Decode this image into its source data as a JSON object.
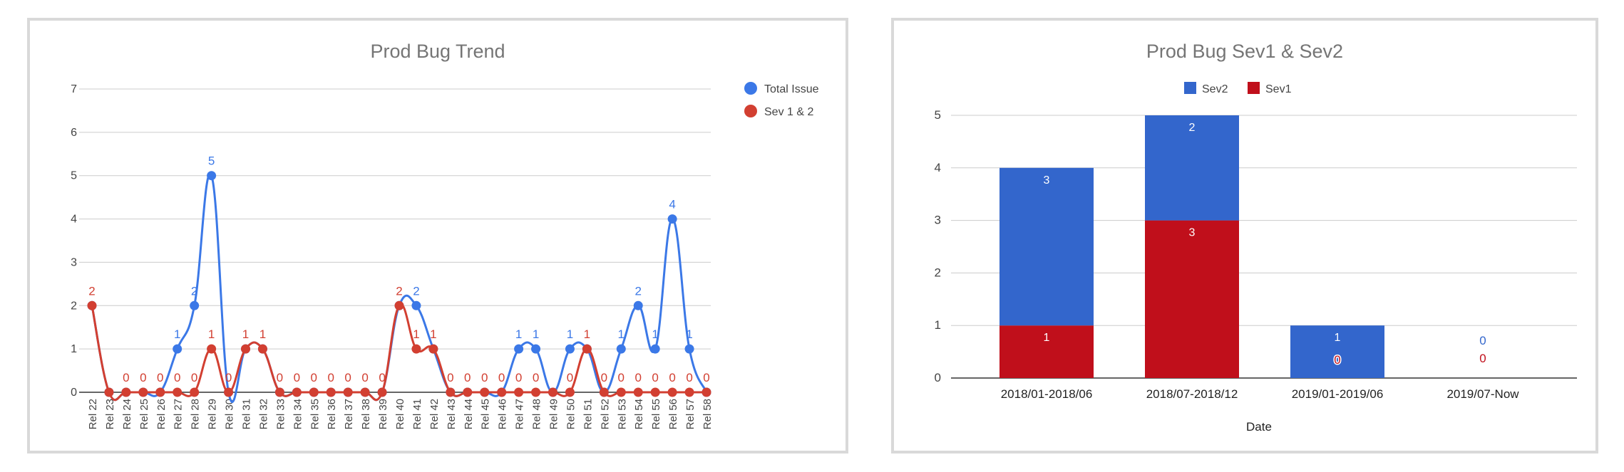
{
  "chart_data": [
    {
      "type": "line",
      "title": "Prod Bug Trend",
      "xlabel": "",
      "ylabel": "",
      "ylim": [
        0,
        7
      ],
      "yticks": [
        0,
        1,
        2,
        3,
        4,
        5,
        6,
        7
      ],
      "grid": true,
      "legend_position": "right",
      "categories": [
        "Rel 22",
        "Rel 23",
        "Rel 24",
        "Rel 25",
        "Rel 26",
        "Rel 27",
        "Rel 28",
        "Rel 29",
        "Rel 30",
        "Rel 31",
        "Rel 32",
        "Rel 33",
        "Rel 34",
        "Rel 35",
        "Rel 36",
        "Rel 37",
        "Rel 38",
        "Rel 39",
        "Rel 40",
        "Rel 41",
        "Rel 42",
        "Rel 43",
        "Rel 44",
        "Rel 45",
        "Rel 46",
        "Rel 47",
        "Rel 48",
        "Rel 49",
        "Rel 50",
        "Rel 51",
        "Rel 52",
        "Rel 53",
        "Rel 54",
        "Rel 55",
        "Rel 56",
        "Rel 57",
        "Rel 58"
      ],
      "series": [
        {
          "name": "Total Issue",
          "color": "#3b78e7",
          "values": [
            2,
            0,
            0,
            0,
            0,
            1,
            2,
            5,
            0,
            1,
            1,
            0,
            0,
            0,
            0,
            0,
            0,
            0,
            2,
            2,
            1,
            0,
            0,
            0,
            0,
            1,
            1,
            0,
            1,
            1,
            0,
            1,
            2,
            1,
            4,
            1,
            0
          ],
          "labels": [
            "",
            "",
            "",
            "",
            "",
            "1",
            "2",
            "5",
            "",
            "",
            "",
            "",
            "",
            "",
            "",
            "",
            "",
            "",
            "",
            "2",
            "",
            "",
            "",
            "",
            "",
            "1",
            "1",
            "",
            "1",
            "",
            "",
            "1",
            "2",
            "1",
            "4",
            "1",
            ""
          ]
        },
        {
          "name": "Sev 1 & 2",
          "color": "#d23f31",
          "values": [
            2,
            0,
            0,
            0,
            0,
            0,
            0,
            1,
            0,
            1,
            1,
            0,
            0,
            0,
            0,
            0,
            0,
            0,
            2,
            1,
            1,
            0,
            0,
            0,
            0,
            0,
            0,
            0,
            0,
            1,
            0,
            0,
            0,
            0,
            0,
            0,
            0
          ],
          "labels": [
            "2",
            "",
            "0",
            "0",
            "0",
            "0",
            "0",
            "1",
            "0",
            "1",
            "1",
            "0",
            "0",
            "0",
            "0",
            "0",
            "0",
            "0",
            "2",
            "1",
            "1",
            "0",
            "0",
            "0",
            "0",
            "0",
            "0",
            "",
            "0",
            "1",
            "0",
            "0",
            "0",
            "0",
            "0",
            "0",
            "0"
          ]
        }
      ]
    },
    {
      "type": "bar",
      "stacked": true,
      "title": "Prod Bug Sev1 & Sev2",
      "xlabel": "Date",
      "ylabel": "",
      "ylim": [
        0,
        5
      ],
      "yticks": [
        0,
        1,
        2,
        3,
        4,
        5
      ],
      "grid": true,
      "legend_position": "top",
      "categories": [
        "2018/01-2018/06",
        "2018/07-2018/12",
        "2019/01-2019/06",
        "2019/07-Now"
      ],
      "series": [
        {
          "name": "Sev2",
          "color": "#3366cc",
          "values": [
            3,
            2,
            1,
            0
          ]
        },
        {
          "name": "Sev1",
          "color": "#c00f1b",
          "values": [
            1,
            3,
            0,
            0
          ]
        }
      ]
    }
  ]
}
